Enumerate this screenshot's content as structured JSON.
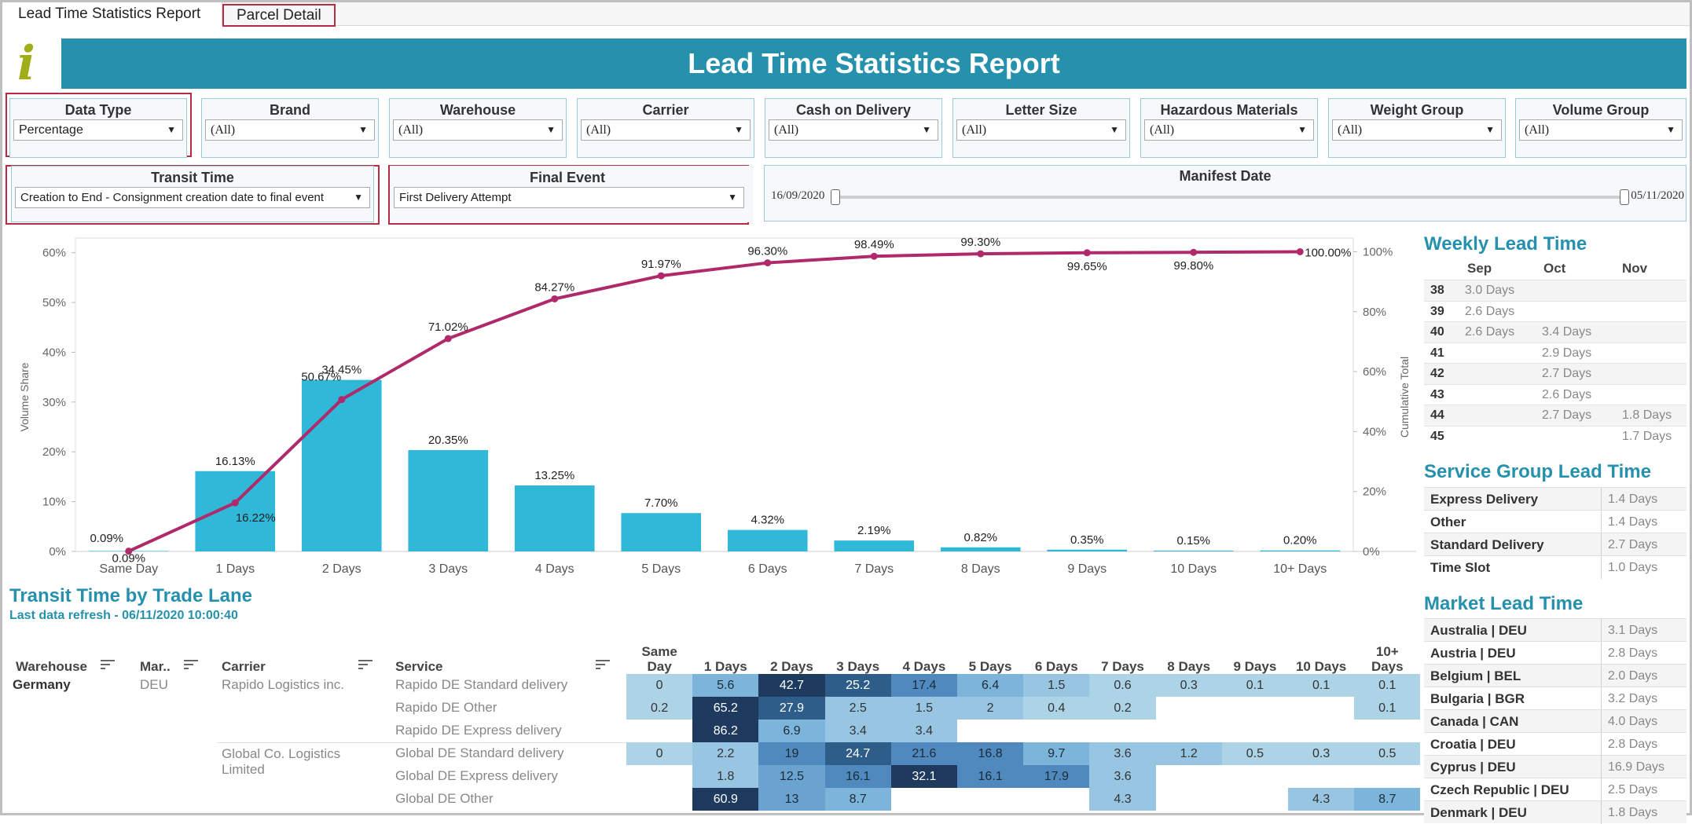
{
  "tabs": [
    "Lead Time Statistics Report",
    "Parcel Detail"
  ],
  "header": {
    "logo": "i",
    "title": "Lead Time Statistics Report"
  },
  "filters": {
    "data_type": {
      "label": "Data Type",
      "value": "Percentage"
    },
    "brand": {
      "label": "Brand",
      "value": "(All)"
    },
    "warehouse": {
      "label": "Warehouse",
      "value": "(All)"
    },
    "carrier": {
      "label": "Carrier",
      "value": "(All)"
    },
    "cod": {
      "label": "Cash on Delivery",
      "value": "(All)"
    },
    "letter_size": {
      "label": "Letter Size",
      "value": "(All)"
    },
    "hazardous": {
      "label": "Hazardous Materials",
      "value": "(All)"
    },
    "weight_group": {
      "label": "Weight Group",
      "value": "(All)"
    },
    "volume_group": {
      "label": "Volume Group",
      "value": "(All)"
    },
    "transit_time": {
      "label": "Transit Time",
      "value": "Creation to End - Consignment creation date to final event"
    },
    "final_event": {
      "label": "Final Event",
      "value": "First Delivery Attempt"
    },
    "manifest_date": {
      "label": "Manifest Date",
      "from": "16/09/2020",
      "to": "05/11/2020",
      "range": [
        0,
        1
      ]
    }
  },
  "chart_data": {
    "type": "bar",
    "title": "",
    "categories": [
      "Same Day",
      "1 Days",
      "2 Days",
      "3 Days",
      "4 Days",
      "5 Days",
      "6 Days",
      "7 Days",
      "8 Days",
      "9 Days",
      "10 Days",
      "10+ Days"
    ],
    "series": [
      {
        "name": "Volume Share",
        "type": "bar",
        "axis": "left",
        "values": [
          0.09,
          16.13,
          34.45,
          20.35,
          13.25,
          7.7,
          4.32,
          2.19,
          0.82,
          0.35,
          0.15,
          0.2
        ],
        "labels": [
          "0.09%",
          "16.13%",
          "34.45%",
          "20.35%",
          "13.25%",
          "7.70%",
          "4.32%",
          "2.19%",
          "0.82%",
          "0.35%",
          "0.15%",
          "0.20%"
        ]
      },
      {
        "name": "Cumulative Total",
        "type": "line",
        "axis": "right",
        "values": [
          0.09,
          16.22,
          50.67,
          71.02,
          84.27,
          91.97,
          96.3,
          98.49,
          99.3,
          99.65,
          99.8,
          100.0
        ],
        "labels": [
          "0.09%",
          "16.22%",
          "50.67%",
          "71.02%",
          "84.27%",
          "91.97%",
          "96.30%",
          "98.49%",
          "99.30%",
          "99.65%",
          "99.80%",
          "100.00%"
        ]
      }
    ],
    "ylabel": "Volume Share",
    "y2label": "Cumulative Total",
    "ylim": [
      0,
      62
    ],
    "y2lim": [
      0,
      103
    ],
    "yticks": [
      "0%",
      "10%",
      "20%",
      "30%",
      "40%",
      "50%",
      "60%"
    ],
    "y2ticks": [
      "0%",
      "20%",
      "40%",
      "60%",
      "80%",
      "100%"
    ],
    "colors": {
      "bar": "#2fb8d8",
      "line": "#b0296a"
    }
  },
  "weekly": {
    "title": "Weekly Lead Time",
    "months": [
      "Sep",
      "Oct",
      "Nov"
    ],
    "rows": [
      {
        "week": "38",
        "sep": "3.0 Days",
        "oct": "",
        "nov": ""
      },
      {
        "week": "39",
        "sep": "2.6 Days",
        "oct": "",
        "nov": ""
      },
      {
        "week": "40",
        "sep": "2.6 Days",
        "oct": "3.4 Days",
        "nov": ""
      },
      {
        "week": "41",
        "sep": "",
        "oct": "2.9 Days",
        "nov": ""
      },
      {
        "week": "42",
        "sep": "",
        "oct": "2.7 Days",
        "nov": ""
      },
      {
        "week": "43",
        "sep": "",
        "oct": "2.6 Days",
        "nov": ""
      },
      {
        "week": "44",
        "sep": "",
        "oct": "2.7 Days",
        "nov": "1.8 Days"
      },
      {
        "week": "45",
        "sep": "",
        "oct": "",
        "nov": "1.7 Days"
      }
    ]
  },
  "service_group": {
    "title": "Service Group Lead Time",
    "rows": [
      {
        "name": "Express Delivery",
        "value": "1.4 Days"
      },
      {
        "name": "Other",
        "value": "1.4 Days"
      },
      {
        "name": "Standard Delivery",
        "value": "2.7 Days"
      },
      {
        "name": "Time Slot",
        "value": "1.0 Days"
      }
    ]
  },
  "market": {
    "title": "Market Lead Time",
    "rows": [
      {
        "name": "Australia | DEU",
        "value": "3.1 Days"
      },
      {
        "name": "Austria | DEU",
        "value": "2.8 Days"
      },
      {
        "name": "Belgium | BEL",
        "value": "2.0 Days"
      },
      {
        "name": "Bulgaria | BGR",
        "value": "3.2 Days"
      },
      {
        "name": "Canada | CAN",
        "value": "4.0 Days"
      },
      {
        "name": "Croatia | DEU",
        "value": "2.8 Days"
      },
      {
        "name": "Cyprus | DEU",
        "value": "16.9 Days"
      },
      {
        "name": "Czech Republic | DEU",
        "value": "2.5 Days"
      },
      {
        "name": "Denmark | DEU",
        "value": "1.8 Days"
      }
    ]
  },
  "trade_lane": {
    "title": "Transit Time by Trade Lane",
    "refresh": "Last data refresh - 06/11/2020 10:00:40",
    "headers": {
      "warehouse": "Warehouse",
      "market": "Mar..",
      "carrier": "Carrier",
      "service": "Service"
    },
    "day_headers": [
      "Same Day",
      "1 Days",
      "2 Days",
      "3 Days",
      "4 Days",
      "5 Days",
      "6 Days",
      "7 Days",
      "8 Days",
      "9 Days",
      "10 Days",
      "10+ Days"
    ],
    "warehouse": "Germany",
    "market": "DEU",
    "carriers": [
      "Rapido Logistics inc.",
      "Global Co. Logistics Limited"
    ],
    "rows": [
      {
        "service": "Rapido DE Standard delivery",
        "values": [
          "0",
          "5.6",
          "42.7",
          "25.2",
          "17.4",
          "6.4",
          "1.5",
          "0.6",
          "0.3",
          "0.1",
          "0.1",
          "0.1"
        ],
        "nums": [
          0,
          5.6,
          42.7,
          25.2,
          17.4,
          6.4,
          1.5,
          0.6,
          0.3,
          0.1,
          0.1,
          0.1
        ]
      },
      {
        "service": "Rapido DE Other",
        "values": [
          "0.2",
          "65.2",
          "27.9",
          "2.5",
          "1.5",
          "2",
          "0.4",
          "0.2",
          "",
          "",
          "",
          "0.1"
        ],
        "nums": [
          0.2,
          65.2,
          27.9,
          2.5,
          1.5,
          2,
          0.4,
          0.2,
          null,
          null,
          null,
          0.1
        ]
      },
      {
        "service": "Rapido DE Express delivery",
        "values": [
          "",
          "86.2",
          "6.9",
          "3.4",
          "3.4",
          "",
          "",
          "",
          "",
          "",
          "",
          ""
        ],
        "nums": [
          null,
          86.2,
          6.9,
          3.4,
          3.4,
          null,
          null,
          null,
          null,
          null,
          null,
          null
        ]
      },
      {
        "service": "Global DE Standard delivery",
        "values": [
          "0",
          "2.2",
          "19",
          "24.7",
          "21.6",
          "16.8",
          "9.7",
          "3.6",
          "1.2",
          "0.5",
          "0.3",
          "0.5"
        ],
        "nums": [
          0,
          2.2,
          19,
          24.7,
          21.6,
          16.8,
          9.7,
          3.6,
          1.2,
          0.5,
          0.3,
          0.5
        ]
      },
      {
        "service": "Global DE Express delivery",
        "values": [
          "",
          "1.8",
          "12.5",
          "16.1",
          "32.1",
          "16.1",
          "17.9",
          "3.6",
          "",
          "",
          "",
          ""
        ],
        "nums": [
          null,
          1.8,
          12.5,
          16.1,
          32.1,
          16.1,
          17.9,
          3.6,
          null,
          null,
          null,
          null
        ]
      },
      {
        "service": "Global DE Other",
        "values": [
          "",
          "60.9",
          "13",
          "8.7",
          "",
          "",
          "",
          "4.3",
          "",
          "",
          "4.3",
          "8.7"
        ],
        "nums": [
          null,
          60.9,
          13,
          8.7,
          null,
          null,
          null,
          4.3,
          null,
          null,
          4.3,
          8.7
        ]
      }
    ]
  }
}
